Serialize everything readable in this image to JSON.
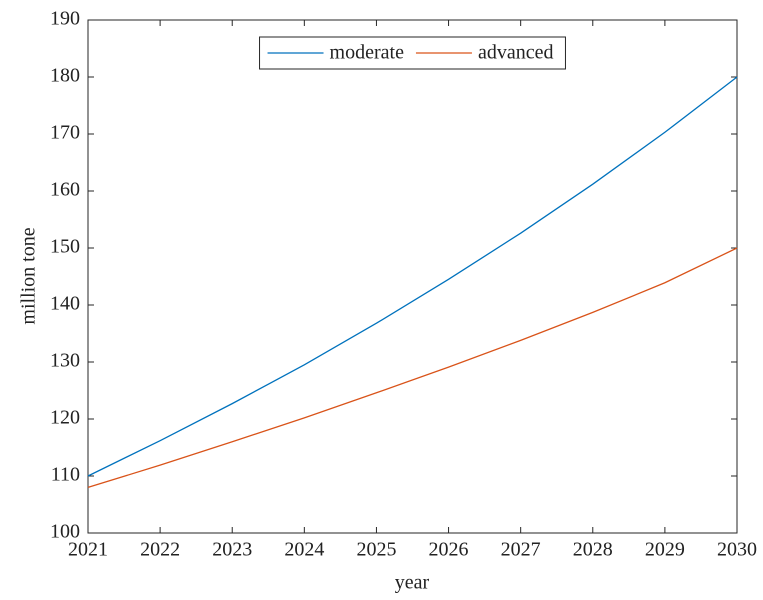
{
  "chart_data": {
    "type": "line",
    "x_label": "year",
    "y_label": "million tone",
    "x": [
      2021,
      2022,
      2023,
      2024,
      2025,
      2026,
      2027,
      2028,
      2029,
      2030
    ],
    "series": [
      {
        "name": "moderate",
        "color": "#0072bd",
        "values": [
          110,
          116.2,
          122.7,
          129.5,
          136.8,
          144.5,
          152.6,
          161.2,
          170.3,
          180
        ]
      },
      {
        "name": "advanced",
        "color": "#d95319",
        "values": [
          108,
          111.9,
          116,
          120.2,
          124.6,
          129.1,
          133.8,
          138.7,
          143.9,
          150
        ]
      }
    ],
    "xlim": [
      2021,
      2030
    ],
    "xticks": [
      2021,
      2022,
      2023,
      2024,
      2025,
      2026,
      2027,
      2028,
      2029,
      2030
    ],
    "ylim": [
      100,
      190
    ],
    "yticks": [
      100,
      110,
      120,
      130,
      140,
      150,
      160,
      170,
      180,
      190
    ],
    "legend": "top"
  }
}
